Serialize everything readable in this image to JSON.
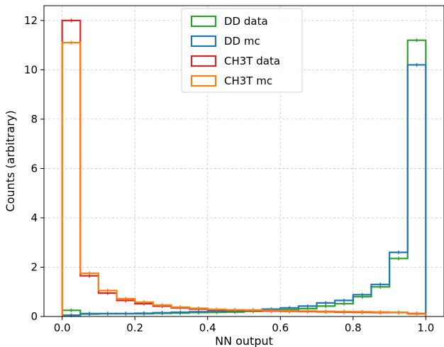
{
  "chart_data": {
    "type": "line",
    "title": "",
    "xlabel": "NN output",
    "ylabel": "Counts (arbitrary)",
    "xlim": [
      -0.05,
      1.05
    ],
    "ylim": [
      0,
      12.6
    ],
    "x_ticks": [
      0.0,
      0.2,
      0.4,
      0.6,
      0.8,
      1.0
    ],
    "x_tick_labels": [
      "0.0",
      "0.2",
      "0.4",
      "0.6",
      "0.8",
      "1.0"
    ],
    "y_ticks": [
      0,
      2,
      4,
      6,
      8,
      10,
      12
    ],
    "y_tick_labels": [
      "0",
      "2",
      "4",
      "6",
      "8",
      "10",
      "12"
    ],
    "grid": true,
    "legend_position": "top-center",
    "bin_edges": [
      0.0,
      0.05,
      0.1,
      0.15,
      0.2,
      0.25,
      0.3,
      0.35,
      0.4,
      0.45,
      0.5,
      0.55,
      0.6,
      0.65,
      0.7,
      0.75,
      0.8,
      0.85,
      0.9,
      0.95,
      1.0
    ],
    "series": [
      {
        "name": "DD data",
        "color": "#2ca02c",
        "values": [
          0.25,
          0.12,
          0.12,
          0.11,
          0.11,
          0.13,
          0.14,
          0.16,
          0.17,
          0.18,
          0.21,
          0.25,
          0.28,
          0.32,
          0.42,
          0.52,
          0.8,
          1.2,
          2.35,
          11.2
        ]
      },
      {
        "name": "DD mc",
        "color": "#1f77b4",
        "values": [
          0.05,
          0.1,
          0.11,
          0.12,
          0.13,
          0.15,
          0.17,
          0.19,
          0.21,
          0.23,
          0.26,
          0.3,
          0.35,
          0.42,
          0.55,
          0.65,
          0.88,
          1.3,
          2.6,
          10.2
        ]
      },
      {
        "name": "CH3T data",
        "color": "#d62728",
        "values": [
          12.0,
          1.65,
          0.95,
          0.65,
          0.52,
          0.42,
          0.35,
          0.3,
          0.27,
          0.25,
          0.24,
          0.22,
          0.21,
          0.2,
          0.19,
          0.18,
          0.17,
          0.16,
          0.16,
          0.12
        ]
      },
      {
        "name": "CH3T mc",
        "color": "#ff7f0e",
        "values": [
          11.1,
          1.75,
          1.05,
          0.72,
          0.58,
          0.46,
          0.38,
          0.33,
          0.29,
          0.27,
          0.26,
          0.24,
          0.23,
          0.22,
          0.21,
          0.2,
          0.19,
          0.18,
          0.17,
          0.1
        ]
      }
    ]
  }
}
